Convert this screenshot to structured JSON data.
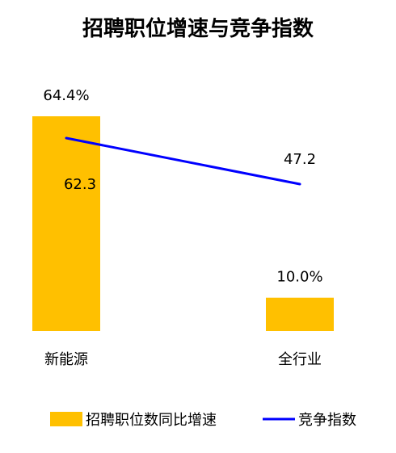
{
  "chart_data": {
    "type": "bar",
    "title": "招聘职位增速与竞争指数",
    "categories": [
      "新能源",
      "全行业"
    ],
    "xlabel": "",
    "ylabel": "",
    "grid": false,
    "legend_position": "bottom",
    "series": [
      {
        "name": "招聘职位数同比增速",
        "type": "bar",
        "values": [
          64.4,
          10.0
        ],
        "labels": [
          "64.4%",
          "10.0%"
        ],
        "color": "#FFC000"
      },
      {
        "name": "竞争指数",
        "type": "line",
        "values": [
          62.3,
          47.2
        ],
        "labels": [
          "62.3",
          "47.2"
        ],
        "color": "#0000FF"
      }
    ],
    "ylim_bar": [
      0,
      70
    ],
    "ylim_line": [
      0,
      90
    ]
  }
}
